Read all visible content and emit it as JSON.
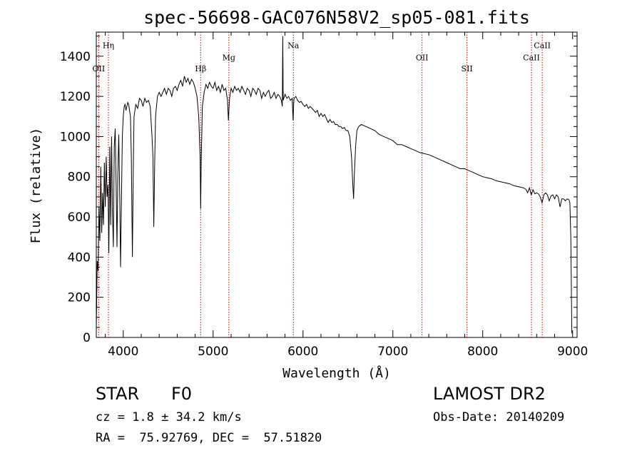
{
  "chart_data": {
    "type": "line",
    "title": "spec-56698-GAC076N58V2_sp05-081.fits",
    "xlabel": "Wavelength (Å)",
    "ylabel": "Flux (relative)",
    "xlim": [
      3700,
      9050
    ],
    "ylim": [
      0,
      1520
    ],
    "x_ticks": [
      4000,
      5000,
      6000,
      7000,
      8000,
      9000
    ],
    "y_ticks": [
      0,
      200,
      400,
      600,
      800,
      1000,
      1200,
      1400
    ],
    "line_color": "#000000",
    "marker_color": "#cc0000",
    "grid": false,
    "series": [
      {
        "points": [
          [
            3700,
            50
          ],
          [
            3710,
            380
          ],
          [
            3720,
            330
          ],
          [
            3730,
            650
          ],
          [
            3740,
            480
          ],
          [
            3750,
            850
          ],
          [
            3760,
            520
          ],
          [
            3770,
            720
          ],
          [
            3780,
            560
          ],
          [
            3790,
            870
          ],
          [
            3800,
            650
          ],
          [
            3810,
            900
          ],
          [
            3820,
            700
          ],
          [
            3830,
            760
          ],
          [
            3840,
            420
          ],
          [
            3850,
            950
          ],
          [
            3860,
            560
          ],
          [
            3870,
            1000
          ],
          [
            3880,
            620
          ],
          [
            3890,
            450
          ],
          [
            3900,
            950
          ],
          [
            3910,
            1040
          ],
          [
            3920,
            780
          ],
          [
            3930,
            450
          ],
          [
            3940,
            820
          ],
          [
            3950,
            1010
          ],
          [
            3960,
            720
          ],
          [
            3970,
            350
          ],
          [
            3980,
            700
          ],
          [
            3990,
            1000
          ],
          [
            4000,
            1100
          ],
          [
            4010,
            1150
          ],
          [
            4020,
            1160
          ],
          [
            4030,
            1130
          ],
          [
            4040,
            1150
          ],
          [
            4050,
            1170
          ],
          [
            4060,
            1160
          ],
          [
            4070,
            1130
          ],
          [
            4080,
            1100
          ],
          [
            4090,
            900
          ],
          [
            4102,
            400
          ],
          [
            4112,
            850
          ],
          [
            4120,
            1100
          ],
          [
            4140,
            1160
          ],
          [
            4160,
            1140
          ],
          [
            4180,
            1190
          ],
          [
            4200,
            1180
          ],
          [
            4220,
            1150
          ],
          [
            4240,
            1190
          ],
          [
            4260,
            1170
          ],
          [
            4280,
            1180
          ],
          [
            4300,
            1150
          ],
          [
            4320,
            1000
          ],
          [
            4330,
            900
          ],
          [
            4340,
            550
          ],
          [
            4350,
            880
          ],
          [
            4360,
            1100
          ],
          [
            4380,
            1200
          ],
          [
            4400,
            1220
          ],
          [
            4420,
            1200
          ],
          [
            4440,
            1220
          ],
          [
            4460,
            1240
          ],
          [
            4480,
            1210
          ],
          [
            4500,
            1240
          ],
          [
            4520,
            1230
          ],
          [
            4540,
            1200
          ],
          [
            4560,
            1240
          ],
          [
            4580,
            1250
          ],
          [
            4600,
            1230
          ],
          [
            4620,
            1260
          ],
          [
            4640,
            1280
          ],
          [
            4660,
            1250
          ],
          [
            4680,
            1300
          ],
          [
            4700,
            1270
          ],
          [
            4720,
            1290
          ],
          [
            4740,
            1260
          ],
          [
            4760,
            1285
          ],
          [
            4780,
            1270
          ],
          [
            4800,
            1240
          ],
          [
            4820,
            1200
          ],
          [
            4840,
            1100
          ],
          [
            4855,
            900
          ],
          [
            4861,
            640
          ],
          [
            4868,
            880
          ],
          [
            4880,
            1150
          ],
          [
            4900,
            1220
          ],
          [
            4920,
            1260
          ],
          [
            4940,
            1240
          ],
          [
            4960,
            1270
          ],
          [
            4980,
            1250
          ],
          [
            5000,
            1240
          ],
          [
            5020,
            1270
          ],
          [
            5040,
            1230
          ],
          [
            5060,
            1250
          ],
          [
            5080,
            1220
          ],
          [
            5100,
            1260
          ],
          [
            5120,
            1230
          ],
          [
            5140,
            1240
          ],
          [
            5160,
            1180
          ],
          [
            5170,
            1080
          ],
          [
            5183,
            1190
          ],
          [
            5200,
            1240
          ],
          [
            5220,
            1220
          ],
          [
            5240,
            1250
          ],
          [
            5260,
            1230
          ],
          [
            5280,
            1240
          ],
          [
            5300,
            1220
          ],
          [
            5320,
            1250
          ],
          [
            5340,
            1230
          ],
          [
            5360,
            1210
          ],
          [
            5380,
            1240
          ],
          [
            5400,
            1230
          ],
          [
            5420,
            1200
          ],
          [
            5440,
            1240
          ],
          [
            5460,
            1230
          ],
          [
            5480,
            1210
          ],
          [
            5500,
            1240
          ],
          [
            5520,
            1230
          ],
          [
            5540,
            1190
          ],
          [
            5560,
            1220
          ],
          [
            5580,
            1200
          ],
          [
            5600,
            1220
          ],
          [
            5620,
            1230
          ],
          [
            5640,
            1190
          ],
          [
            5660,
            1200
          ],
          [
            5680,
            1220
          ],
          [
            5700,
            1190
          ],
          [
            5720,
            1210
          ],
          [
            5740,
            1200
          ],
          [
            5760,
            1180
          ],
          [
            5770,
            1150
          ],
          [
            5775,
            1500
          ],
          [
            5780,
            1180
          ],
          [
            5800,
            1210
          ],
          [
            5820,
            1190
          ],
          [
            5840,
            1200
          ],
          [
            5860,
            1180
          ],
          [
            5880,
            1190
          ],
          [
            5890,
            1080
          ],
          [
            5895,
            1150
          ],
          [
            5900,
            1190
          ],
          [
            5920,
            1200
          ],
          [
            5940,
            1180
          ],
          [
            5960,
            1170
          ],
          [
            5980,
            1175
          ],
          [
            6000,
            1160
          ],
          [
            6020,
            1150
          ],
          [
            6040,
            1160
          ],
          [
            6060,
            1140
          ],
          [
            6080,
            1150
          ],
          [
            6100,
            1140
          ],
          [
            6120,
            1130
          ],
          [
            6140,
            1120
          ],
          [
            6160,
            1130
          ],
          [
            6180,
            1100
          ],
          [
            6200,
            1115
          ],
          [
            6220,
            1100
          ],
          [
            6240,
            1110
          ],
          [
            6260,
            1090
          ],
          [
            6280,
            1070
          ],
          [
            6300,
            1085
          ],
          [
            6320,
            1070
          ],
          [
            6340,
            1075
          ],
          [
            6360,
            1060
          ],
          [
            6380,
            1060
          ],
          [
            6400,
            1050
          ],
          [
            6420,
            1050
          ],
          [
            6440,
            1040
          ],
          [
            6460,
            1045
          ],
          [
            6480,
            1030
          ],
          [
            6500,
            1030
          ],
          [
            6520,
            1000
          ],
          [
            6540,
            900
          ],
          [
            6555,
            750
          ],
          [
            6563,
            690
          ],
          [
            6570,
            800
          ],
          [
            6585,
            950
          ],
          [
            6600,
            1030
          ],
          [
            6620,
            1050
          ],
          [
            6650,
            1060
          ],
          [
            6700,
            1050
          ],
          [
            6750,
            1040
          ],
          [
            6800,
            1030
          ],
          [
            6850,
            1010
          ],
          [
            6900,
            1000
          ],
          [
            6950,
            990
          ],
          [
            7000,
            980
          ],
          [
            7050,
            960
          ],
          [
            7100,
            960
          ],
          [
            7150,
            950
          ],
          [
            7200,
            940
          ],
          [
            7250,
            930
          ],
          [
            7300,
            920
          ],
          [
            7350,
            915
          ],
          [
            7400,
            910
          ],
          [
            7450,
            900
          ],
          [
            7500,
            890
          ],
          [
            7550,
            880
          ],
          [
            7600,
            870
          ],
          [
            7650,
            860
          ],
          [
            7700,
            850
          ],
          [
            7750,
            840
          ],
          [
            7800,
            840
          ],
          [
            7850,
            830
          ],
          [
            7900,
            820
          ],
          [
            7950,
            810
          ],
          [
            8000,
            800
          ],
          [
            8050,
            795
          ],
          [
            8100,
            790
          ],
          [
            8150,
            780
          ],
          [
            8200,
            775
          ],
          [
            8250,
            770
          ],
          [
            8300,
            765
          ],
          [
            8350,
            755
          ],
          [
            8400,
            750
          ],
          [
            8450,
            745
          ],
          [
            8480,
            738
          ],
          [
            8500,
            720
          ],
          [
            8520,
            745
          ],
          [
            8540,
            710
          ],
          [
            8560,
            735
          ],
          [
            8580,
            715
          ],
          [
            8600,
            720
          ],
          [
            8620,
            715
          ],
          [
            8640,
            700
          ],
          [
            8660,
            670
          ],
          [
            8680,
            710
          ],
          [
            8700,
            720
          ],
          [
            8720,
            710
          ],
          [
            8740,
            680
          ],
          [
            8760,
            705
          ],
          [
            8780,
            710
          ],
          [
            8800,
            690
          ],
          [
            8820,
            710
          ],
          [
            8840,
            700
          ],
          [
            8860,
            650
          ],
          [
            8880,
            690
          ],
          [
            8900,
            690
          ],
          [
            8920,
            680
          ],
          [
            8940,
            690
          ],
          [
            8960,
            685
          ],
          [
            8970,
            670
          ],
          [
            8980,
            500
          ],
          [
            8985,
            300
          ],
          [
            8990,
            100
          ],
          [
            8992,
            20
          ]
        ]
      }
    ],
    "lines": [
      {
        "label": "OII",
        "x": 3727,
        "label_y": 1325
      },
      {
        "label": "Hη",
        "x": 3835,
        "label_y": 1440
      },
      {
        "label": "Hβ",
        "x": 4861,
        "label_y": 1325
      },
      {
        "label": "Mg",
        "x": 5175,
        "label_y": 1380
      },
      {
        "label": "Na",
        "x": 5893,
        "label_y": 1440
      },
      {
        "label": "OII",
        "x": 7325,
        "label_y": 1380
      },
      {
        "label": "SII",
        "x": 7825,
        "label_y": 1325
      },
      {
        "label": "CaII",
        "x": 8542,
        "label_y": 1380
      },
      {
        "label": "CaII",
        "x": 8662,
        "label_y": 1440
      }
    ]
  },
  "info": {
    "object_class": "STAR",
    "subclass": "F0",
    "redshift_line": "cz = 1.8 ± 34.2 km/s",
    "coords_line": "RA =  75.92769, DEC =  57.51820",
    "survey": "LAMOST DR2",
    "obs_date": "Obs-Date: 20140209"
  }
}
